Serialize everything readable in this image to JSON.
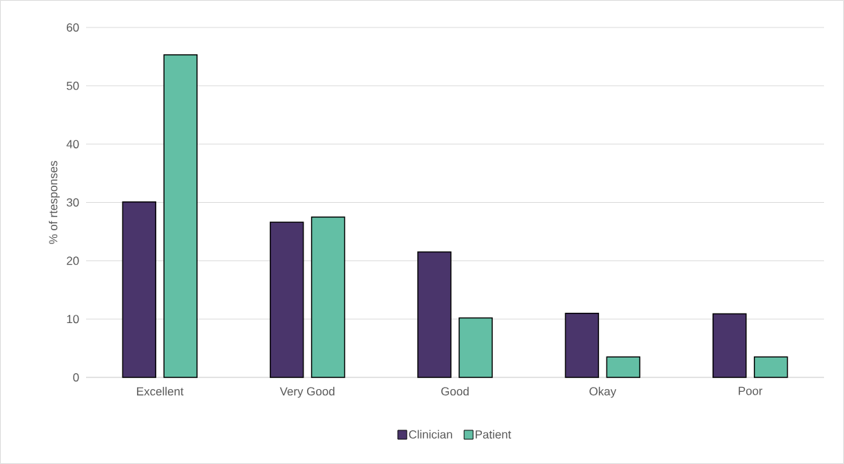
{
  "chart_data": {
    "type": "bar",
    "ylabel": "% of rtesponses",
    "categories": [
      "Excellent",
      "Very Good",
      "Good",
      "Okay",
      "Poor"
    ],
    "series": [
      {
        "name": "Clinician",
        "color": "#4a356b",
        "values": [
          30.1,
          26.6,
          21.5,
          11.0,
          10.9
        ]
      },
      {
        "name": "Patient",
        "color": "#63bfa5",
        "values": [
          55.3,
          27.5,
          10.2,
          3.5,
          3.5
        ]
      }
    ],
    "ylim": [
      0,
      60
    ],
    "yticks": [
      0,
      10,
      20,
      30,
      40,
      50,
      60
    ],
    "grid": "y",
    "legend": "bottom"
  }
}
